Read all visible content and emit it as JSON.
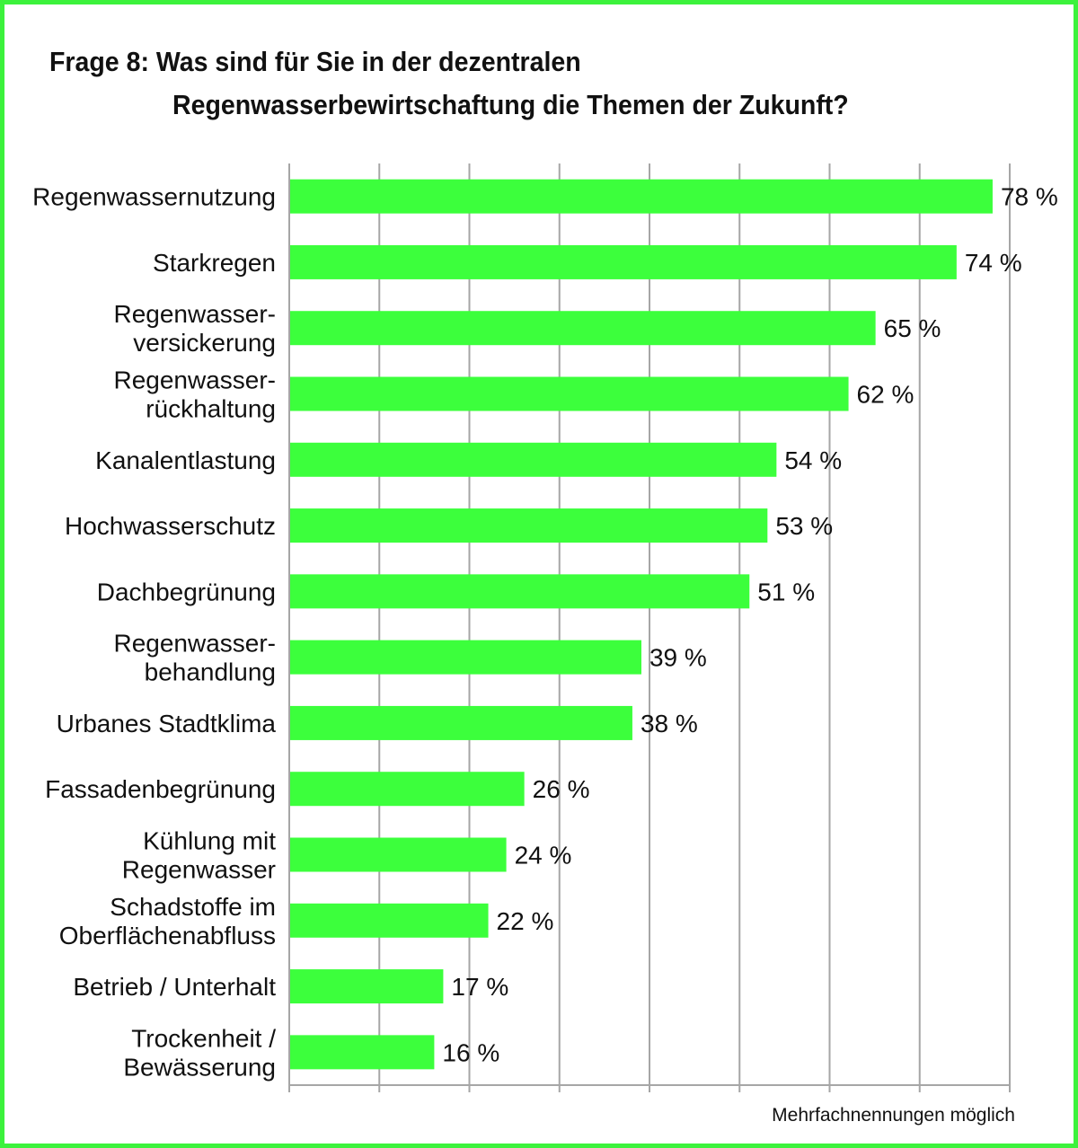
{
  "chart_data": {
    "type": "bar",
    "orientation": "horizontal",
    "title_line1": "Frage 8: Was sind für Sie in der dezentralen",
    "title_line2": "Regenwasserbewirtschaftung die Themen der Zukunft?",
    "categories": [
      [
        "Regenwassernutzung"
      ],
      [
        "Starkregen"
      ],
      [
        "Regenwasser-",
        "versickerung"
      ],
      [
        "Regenwasser-",
        "rückhaltung"
      ],
      [
        "Kanalentlastung"
      ],
      [
        "Hochwasserschutz"
      ],
      [
        "Dachbegrünung"
      ],
      [
        "Regenwasser-",
        "behandlung"
      ],
      [
        "Urbanes Stadtklima"
      ],
      [
        "Fassadenbegrünung"
      ],
      [
        "Kühlung mit",
        "Regenwasser"
      ],
      [
        "Schadstoffe im",
        "Oberflächenabfluss"
      ],
      [
        "Betrieb / Unterhalt"
      ],
      [
        "Trockenheit /",
        "Bewässerung"
      ]
    ],
    "values": [
      78,
      74,
      65,
      62,
      54,
      53,
      51,
      39,
      38,
      26,
      24,
      22,
      17,
      16
    ],
    "value_labels": [
      "78 %",
      "74 %",
      "65 %",
      "62 %",
      "54 %",
      "53 %",
      "51 %",
      "39 %",
      "38 %",
      "26 %",
      "24 %",
      "22 %",
      "17 %",
      "16 %"
    ],
    "xlim": [
      0,
      80
    ],
    "grid": true,
    "bar_color": "#3cff3c",
    "note": "Mehrfachnennungen möglich"
  },
  "colors": {
    "frame": "#3cf23c",
    "bar": "#3cff3c",
    "grid": "#a6a6a6"
  }
}
